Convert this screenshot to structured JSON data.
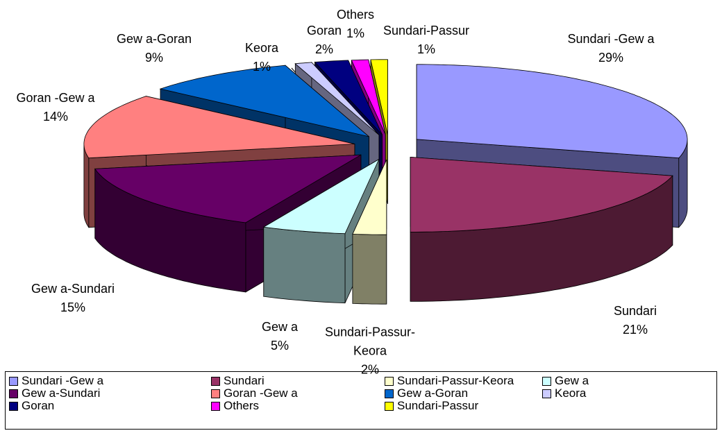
{
  "chart_data": {
    "type": "pie3d",
    "categories": [
      "Sundari -Gew a",
      "Sundari",
      "Sundari-Passur-Keora",
      "Gew a",
      "Gew a-Sundari",
      "Goran -Gew a",
      "Gew a-Goran",
      "Keora",
      "Goran",
      "Others",
      "Sundari-Passur"
    ],
    "values": [
      29,
      21,
      2,
      5,
      15,
      14,
      9,
      1,
      2,
      1,
      1
    ],
    "value_labels": [
      "29%",
      "21%",
      "2%",
      "5%",
      "15%",
      "14%",
      "9%",
      "1%",
      "2%",
      "1%",
      "1%"
    ],
    "colors": [
      "#9999ff",
      "#993366",
      "#ffffcc",
      "#ccffff",
      "#660066",
      "#ff8080",
      "#0066cc",
      "#ccccff",
      "#000080",
      "#ff00ff",
      "#ffff00"
    ],
    "legend": "bottom"
  }
}
